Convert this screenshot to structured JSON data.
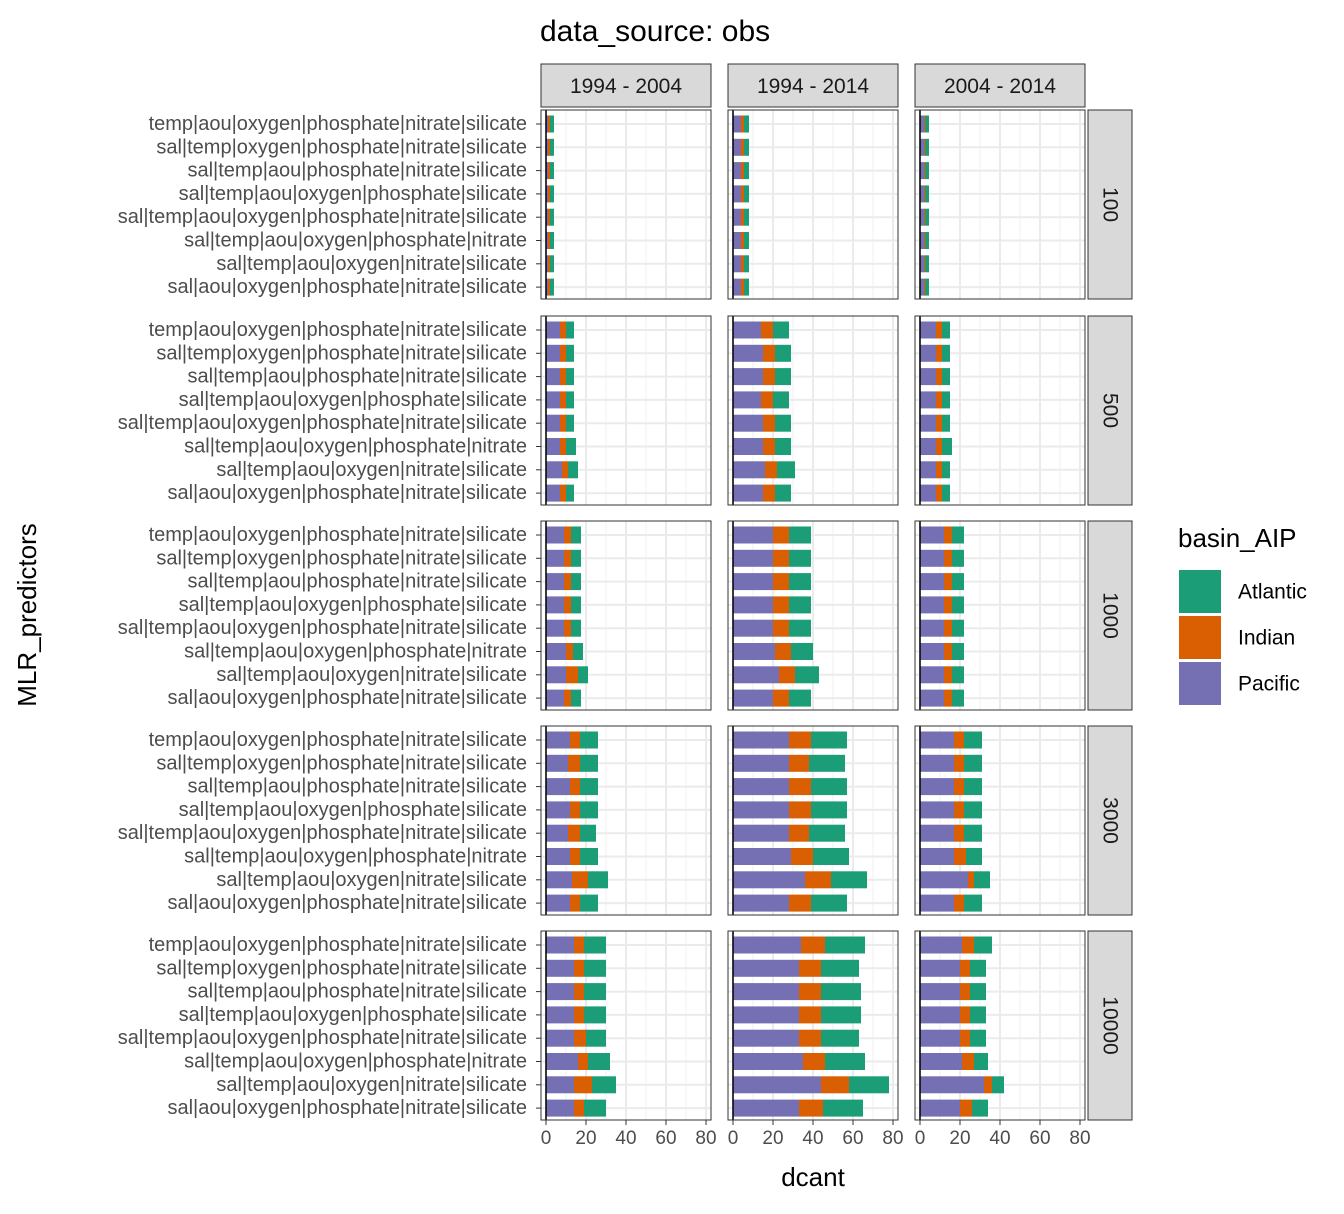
{
  "chart_data": {
    "type": "bar",
    "orientation": "horizontal",
    "stacked": true,
    "title": "data_source: obs",
    "xlabel": "dcant",
    "ylabel": "MLR_predictors",
    "xlim": [
      0,
      80
    ],
    "xticks": [
      0,
      20,
      40,
      60,
      80
    ],
    "grid": true,
    "col_facets": [
      "1994 - 2004",
      "1994 - 2014",
      "2004 - 2014"
    ],
    "row_facets": [
      "100",
      "500",
      "1000",
      "3000",
      "10000"
    ],
    "categories": [
      "temp|aou|oxygen|phosphate|nitrate|silicate",
      "sal|temp|oxygen|phosphate|nitrate|silicate",
      "sal|temp|aou|phosphate|nitrate|silicate",
      "sal|temp|aou|oxygen|phosphate|silicate",
      "sal|temp|aou|oxygen|phosphate|nitrate|silicate",
      "sal|temp|aou|oxygen|phosphate|nitrate",
      "sal|temp|aou|oxygen|nitrate|silicate",
      "sal|aou|oxygen|phosphate|nitrate|silicate"
    ],
    "legend": {
      "title": "basin_AIP",
      "position": "right",
      "entries": [
        {
          "name": "Atlantic",
          "color": "#1B9E77"
        },
        {
          "name": "Indian",
          "color": "#D95F02"
        },
        {
          "name": "Pacific",
          "color": "#7570B3"
        }
      ]
    },
    "series_order": [
      "Pacific",
      "Indian",
      "Atlantic"
    ],
    "panels": [
      {
        "row": "100",
        "col": "1994 - 2004",
        "Pacific": [
          1,
          1,
          1,
          1,
          1,
          1,
          1,
          1
        ],
        "Indian": [
          1,
          1,
          1,
          1,
          1,
          1,
          1,
          1
        ],
        "Atlantic": [
          2,
          2,
          2,
          2,
          2,
          2,
          2,
          2
        ]
      },
      {
        "row": "100",
        "col": "1994 - 2014",
        "Pacific": [
          4,
          4,
          4,
          4,
          4,
          4,
          4,
          4
        ],
        "Indian": [
          1.5,
          1.5,
          1.5,
          1.5,
          1.5,
          1.5,
          1.5,
          1.5
        ],
        "Atlantic": [
          2.5,
          2.5,
          2.5,
          2.5,
          2.5,
          2.5,
          2.5,
          2.5
        ]
      },
      {
        "row": "100",
        "col": "2004 - 2014",
        "Pacific": [
          2,
          2,
          2,
          2,
          2,
          2,
          2,
          2
        ],
        "Indian": [
          0.5,
          0.5,
          0.5,
          0.5,
          0.5,
          0.5,
          0.5,
          0.5
        ],
        "Atlantic": [
          2,
          2,
          2,
          2,
          2,
          2,
          2,
          2
        ]
      },
      {
        "row": "500",
        "col": "1994 - 2004",
        "Pacific": [
          7,
          7,
          7,
          7,
          7,
          7,
          8,
          7
        ],
        "Indian": [
          3,
          3,
          3,
          3,
          3,
          3,
          3,
          3
        ],
        "Atlantic": [
          4,
          4,
          4,
          4,
          4,
          5,
          5,
          4
        ]
      },
      {
        "row": "500",
        "col": "1994 - 2014",
        "Pacific": [
          14,
          15,
          15,
          14,
          15,
          15,
          16,
          15
        ],
        "Indian": [
          6,
          6,
          6,
          6,
          6,
          6,
          6,
          6
        ],
        "Atlantic": [
          8,
          8,
          8,
          8,
          8,
          8,
          9,
          8
        ]
      },
      {
        "row": "500",
        "col": "2004 - 2014",
        "Pacific": [
          8,
          8,
          8,
          8,
          8,
          8,
          8,
          8
        ],
        "Indian": [
          3,
          3,
          3,
          3,
          3,
          3,
          3,
          3
        ],
        "Atlantic": [
          4,
          4,
          4,
          4,
          4,
          5,
          4,
          4
        ]
      },
      {
        "row": "1000",
        "col": "1994 - 2004",
        "Pacific": [
          9,
          9,
          9,
          9,
          9,
          10,
          10,
          9
        ],
        "Indian": [
          3.5,
          3.5,
          3.5,
          3.5,
          3.5,
          3.5,
          6,
          3.5
        ],
        "Atlantic": [
          5,
          5,
          5,
          5,
          5,
          5,
          5,
          5
        ]
      },
      {
        "row": "1000",
        "col": "1994 - 2014",
        "Pacific": [
          20,
          20,
          20,
          20,
          20,
          21,
          23,
          20
        ],
        "Indian": [
          8,
          8,
          8,
          8,
          8,
          8,
          8,
          8
        ],
        "Atlantic": [
          11,
          11,
          11,
          11,
          11,
          11,
          12,
          11
        ]
      },
      {
        "row": "1000",
        "col": "2004 - 2014",
        "Pacific": [
          12,
          12,
          12,
          12,
          12,
          12,
          12,
          12
        ],
        "Indian": [
          4,
          4,
          4,
          4,
          4,
          4,
          4,
          4
        ],
        "Atlantic": [
          6,
          6,
          6,
          6,
          6,
          6,
          6,
          6
        ]
      },
      {
        "row": "3000",
        "col": "1994 - 2004",
        "Pacific": [
          12,
          11,
          12,
          12,
          11,
          12,
          13,
          12
        ],
        "Indian": [
          5,
          6,
          5,
          5,
          6,
          5,
          8,
          5
        ],
        "Atlantic": [
          9,
          9,
          9,
          9,
          8,
          9,
          10,
          9
        ]
      },
      {
        "row": "3000",
        "col": "1994 - 2014",
        "Pacific": [
          28,
          28,
          28,
          28,
          28,
          29,
          36,
          28
        ],
        "Indian": [
          11,
          10,
          11,
          11,
          10,
          11,
          13,
          11
        ],
        "Atlantic": [
          18,
          18,
          18,
          18,
          18,
          18,
          18,
          18
        ]
      },
      {
        "row": "3000",
        "col": "2004 - 2014",
        "Pacific": [
          17,
          17,
          17,
          17,
          17,
          17,
          24,
          17
        ],
        "Indian": [
          5,
          5,
          5,
          5,
          5,
          6,
          3,
          5
        ],
        "Atlantic": [
          9,
          9,
          9,
          9,
          9,
          8,
          8,
          9
        ]
      },
      {
        "row": "10000",
        "col": "1994 - 2004",
        "Pacific": [
          14,
          14,
          14,
          14,
          14,
          16,
          14,
          14
        ],
        "Indian": [
          5,
          5,
          5,
          5,
          6,
          5,
          9,
          5
        ],
        "Atlantic": [
          11,
          11,
          11,
          11,
          10,
          11,
          12,
          11
        ]
      },
      {
        "row": "10000",
        "col": "1994 - 2014",
        "Pacific": [
          34,
          33,
          33,
          33,
          33,
          35,
          44,
          33
        ],
        "Indian": [
          12,
          11,
          11,
          11,
          11,
          11,
          14,
          12
        ],
        "Atlantic": [
          20,
          19,
          20,
          20,
          19,
          20,
          20,
          20
        ]
      },
      {
        "row": "10000",
        "col": "2004 - 2014",
        "Pacific": [
          21,
          20,
          20,
          20,
          20,
          21,
          32,
          20
        ],
        "Indian": [
          6,
          5,
          5,
          5,
          5,
          6,
          4,
          6
        ],
        "Atlantic": [
          9,
          8,
          8,
          8,
          8,
          7,
          6,
          8
        ]
      }
    ]
  }
}
